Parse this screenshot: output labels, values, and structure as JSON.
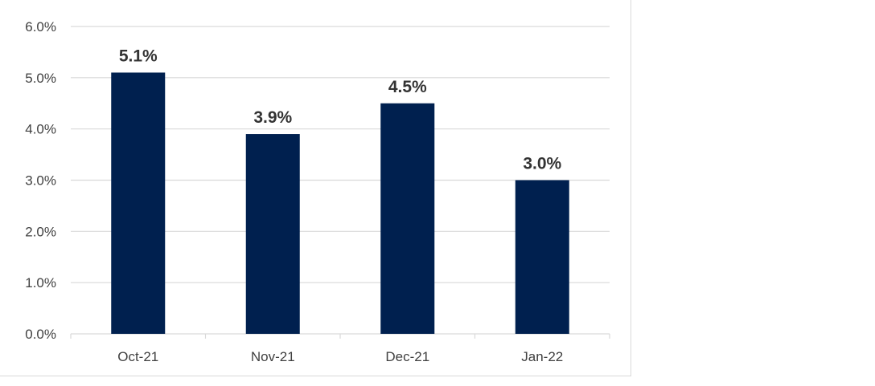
{
  "colors": {
    "bar": "#00204f",
    "grid": "#d9d9d9",
    "tick_text": "#404040",
    "label_text": "#333333"
  },
  "chart_data": {
    "type": "bar",
    "categories": [
      "Oct-21",
      "Nov-21",
      "Dec-21",
      "Jan-22"
    ],
    "values": [
      5.1,
      3.9,
      4.5,
      3.0
    ],
    "data_labels": [
      "5.1%",
      "3.9%",
      "4.5%",
      "3.0%"
    ],
    "y_ticks": [
      0,
      1,
      2,
      3,
      4,
      5,
      6
    ],
    "y_tick_labels": [
      "0.0%",
      "1.0%",
      "2.0%",
      "3.0%",
      "4.0%",
      "5.0%",
      "6.0%"
    ],
    "ylim": [
      0,
      6
    ],
    "grid": true,
    "legend": false,
    "title": "",
    "xlabel": "",
    "ylabel": ""
  }
}
